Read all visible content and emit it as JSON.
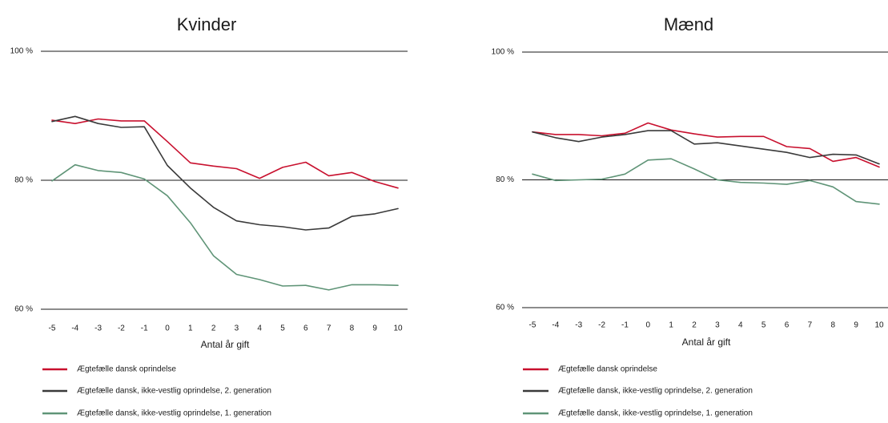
{
  "chart_data": [
    {
      "type": "line",
      "title": "Kvinder",
      "xlabel": "Antal år gift",
      "ylabel": "",
      "ylim": [
        60,
        100
      ],
      "yticks": [
        {
          "value": 100,
          "label": "100 %"
        },
        {
          "value": 80,
          "label": "80 %"
        },
        {
          "value": 60,
          "label": "60 %"
        }
      ],
      "grid_lines_at": [
        100,
        80,
        60
      ],
      "x": [
        "-5",
        "-4",
        "-3",
        "-2",
        "-1",
        "0",
        "1",
        "2",
        "3",
        "4",
        "5",
        "6",
        "7",
        "8",
        "9",
        "10"
      ],
      "series": [
        {
          "name": "Ægtefælle dansk oprindelse",
          "color": "#c8102e",
          "values": [
            89.3,
            88.8,
            89.5,
            89.2,
            89.2,
            86.0,
            82.7,
            82.2,
            81.8,
            80.3,
            82.0,
            82.8,
            80.7,
            81.2,
            79.8,
            78.8
          ]
        },
        {
          "name": "Ægtefælle dansk, ikke-vestlig oprindelse, 2. generation",
          "color": "#3a3a3a",
          "values": [
            89.1,
            89.9,
            88.8,
            88.2,
            88.3,
            82.3,
            78.8,
            75.8,
            73.7,
            73.1,
            72.8,
            72.3,
            72.6,
            74.4,
            74.8,
            75.6
          ]
        },
        {
          "name": "Ægtefælle dansk, ikke-vestlig oprindelse, 1. generation",
          "color": "#5f9477",
          "values": [
            79.9,
            82.4,
            81.5,
            81.2,
            80.2,
            77.6,
            73.4,
            68.3,
            65.4,
            64.6,
            63.6,
            63.7,
            63.0,
            63.8,
            63.8,
            63.7
          ]
        }
      ]
    },
    {
      "type": "line",
      "title": "Mænd",
      "xlabel": "Antal år gift",
      "ylabel": "",
      "ylim": [
        60,
        100
      ],
      "yticks": [
        {
          "value": 100,
          "label": "100 %"
        },
        {
          "value": 80,
          "label": "80 %"
        },
        {
          "value": 60,
          "label": "60 %"
        }
      ],
      "grid_lines_at": [
        100,
        80,
        60
      ],
      "x": [
        "-5",
        "-4",
        "-3",
        "-2",
        "-1",
        "0",
        "1",
        "2",
        "3",
        "4",
        "5",
        "6",
        "7",
        "8",
        "9",
        "10"
      ],
      "series": [
        {
          "name": "Ægtefælle dansk oprindelse",
          "color": "#c8102e",
          "values": [
            87.5,
            87.1,
            87.1,
            86.9,
            87.3,
            88.9,
            87.8,
            87.2,
            86.7,
            86.8,
            86.8,
            85.2,
            84.9,
            82.9,
            83.5,
            82.0
          ]
        },
        {
          "name": "Ægtefælle dansk, ikke-vestlig oprindelse, 2. generation",
          "color": "#3a3a3a",
          "values": [
            87.5,
            86.6,
            86.0,
            86.7,
            87.1,
            87.7,
            87.7,
            85.6,
            85.8,
            85.3,
            84.8,
            84.3,
            83.5,
            84.0,
            83.9,
            82.5
          ]
        },
        {
          "name": "Ægtefælle dansk, ikke-vestlig oprindelse, 1. generation",
          "color": "#5f9477",
          "values": [
            80.9,
            79.9,
            80.0,
            80.1,
            80.9,
            83.1,
            83.3,
            81.7,
            80.0,
            79.6,
            79.5,
            79.3,
            79.9,
            78.9,
            76.6,
            76.2
          ]
        }
      ]
    }
  ]
}
